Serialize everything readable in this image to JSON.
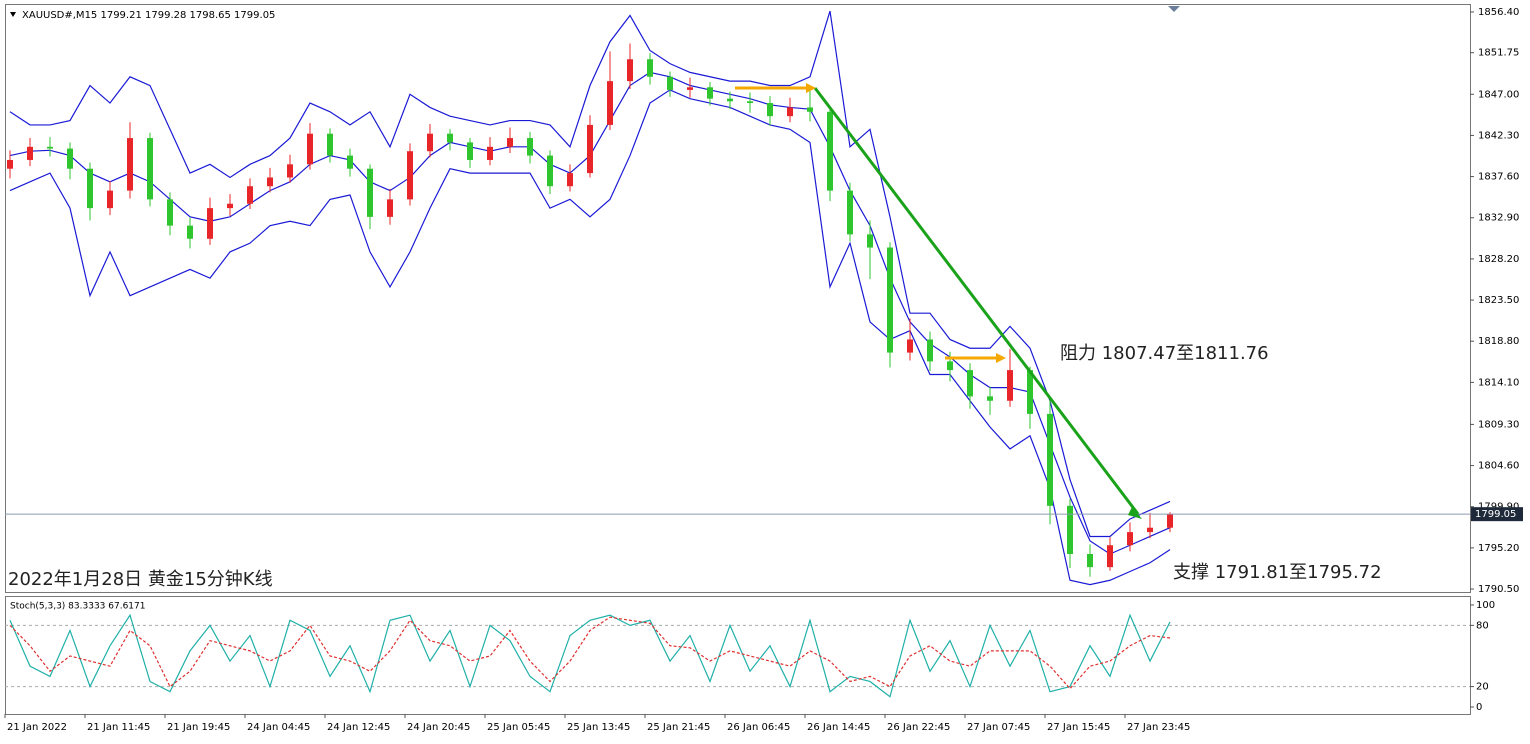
{
  "chart_data": {
    "type": "candlestick",
    "title": "XAUUSD#,M15  1799.21 1799.28 1798.65 1799.05",
    "annotations": [
      "阻力 1807.47至1811.76",
      "支撑 1791.81至1795.72",
      "2022年1月28日 黄金15分钟K线"
    ],
    "categories": [
      "21 Jan 2022",
      null,
      null,
      null,
      "21 Jan 11:45",
      null,
      null,
      null,
      "21 Jan 19:45",
      null,
      null,
      null,
      "24 Jan 04:45",
      null,
      null,
      null,
      "24 Jan 12:45",
      null,
      null,
      null,
      "24 Jan 20:45",
      null,
      null,
      null,
      "25 Jan 05:45",
      null,
      null,
      null,
      "25 Jan 13:45",
      null,
      null,
      null,
      "25 Jan 21:45",
      null,
      null,
      null,
      "26 Jan 06:45",
      null,
      null,
      null,
      "26 Jan 14:45",
      null,
      null,
      null,
      "26 Jan 22:45",
      null,
      null,
      null,
      "27 Jan 07:45",
      null,
      null,
      null,
      "27 Jan 15:45",
      null,
      null,
      null,
      "27 Jan 23:45",
      null,
      null
    ],
    "open": [
      1838.5,
      1839.5,
      1841.0,
      1840.8,
      1838.5,
      1834.0,
      1836.0,
      1842.0,
      1835.0,
      1832.0,
      1830.5,
      1834.0,
      1834.5,
      1836.5,
      1837.5,
      1839.0,
      1842.5,
      1840.0,
      1838.5,
      1833.0,
      1835.0,
      1840.5,
      1842.5,
      1841.5,
      1839.5,
      1841.0,
      1842.0,
      1840.0,
      1836.5,
      1838.0,
      1843.5,
      1848.5,
      1851.0,
      1849.0,
      1847.5,
      1847.8,
      1846.5,
      1846.2,
      1846.0,
      1844.5,
      1845.5,
      1845.0,
      1836.0,
      1831.0,
      1829.5,
      1817.5,
      1819.0,
      1816.5,
      1815.5,
      1812.5,
      1812.0,
      1815.5,
      1810.5,
      1800.0,
      1794.5,
      1793.0,
      1795.5,
      1797.0,
      1797.5
    ],
    "high": [
      1840.6,
      1842.0,
      1842.1,
      1841.5,
      1839.2,
      1837.1,
      1843.8,
      1842.6,
      1835.8,
      1832.9,
      1835.2,
      1835.6,
      1837.4,
      1838.6,
      1840.1,
      1843.7,
      1843.1,
      1840.8,
      1839.0,
      1836.2,
      1841.4,
      1843.6,
      1843.0,
      1842.0,
      1842.1,
      1843.2,
      1842.7,
      1840.6,
      1839.0,
      1844.6,
      1851.9,
      1852.8,
      1851.7,
      1849.6,
      1848.9,
      1848.4,
      1847.3,
      1847.2,
      1846.8,
      1846.6,
      1848.0,
      1845.6,
      1836.9,
      1832.6,
      1830.1,
      1821.4,
      1819.9,
      1817.6,
      1816.3,
      1813.6,
      1817.9,
      1815.9,
      1812.2,
      1800.8,
      1795.6,
      1796.4,
      1798.1,
      1799.2,
      1799.28
    ],
    "low": [
      1837.4,
      1838.8,
      1839.9,
      1837.3,
      1832.6,
      1833.2,
      1835.1,
      1834.2,
      1830.9,
      1829.4,
      1829.8,
      1833.1,
      1833.9,
      1835.8,
      1836.9,
      1838.4,
      1839.2,
      1837.6,
      1831.6,
      1832.1,
      1834.3,
      1839.8,
      1840.6,
      1838.6,
      1838.9,
      1840.3,
      1839.1,
      1835.6,
      1835.9,
      1837.5,
      1842.9,
      1847.6,
      1848.1,
      1846.7,
      1846.6,
      1845.7,
      1845.3,
      1844.9,
      1843.4,
      1843.8,
      1843.9,
      1834.8,
      1830.2,
      1825.9,
      1815.8,
      1816.6,
      1815.4,
      1814.2,
      1811.1,
      1810.4,
      1811.3,
      1808.8,
      1797.9,
      1792.9,
      1791.9,
      1792.6,
      1794.8,
      1796.3,
      1797.0
    ],
    "close": [
      1839.5,
      1841.0,
      1840.8,
      1838.5,
      1834.0,
      1836.0,
      1842.0,
      1835.0,
      1832.0,
      1830.5,
      1834.0,
      1834.5,
      1836.5,
      1837.5,
      1839.0,
      1842.5,
      1840.0,
      1838.5,
      1833.0,
      1835.0,
      1840.5,
      1842.5,
      1841.5,
      1839.5,
      1841.0,
      1842.0,
      1840.0,
      1836.5,
      1838.0,
      1843.5,
      1848.5,
      1851.0,
      1849.0,
      1847.5,
      1847.8,
      1846.5,
      1846.2,
      1846.0,
      1844.5,
      1845.5,
      1845.0,
      1836.0,
      1831.0,
      1829.5,
      1817.5,
      1819.0,
      1816.5,
      1815.5,
      1812.5,
      1812.0,
      1815.5,
      1810.5,
      1800.0,
      1794.5,
      1793.0,
      1795.5,
      1797.0,
      1797.5,
      1799.05
    ],
    "up_color": "#e8262a",
    "down_color": "#2ec52e",
    "series": [
      {
        "color": "#1a1ad6",
        "values": [
          1845,
          1843.5,
          1843.5,
          1844,
          1848,
          1846,
          1849,
          1848,
          1843,
          1838,
          1839,
          1837.5,
          1839,
          1840,
          1842,
          1846,
          1845,
          1843.5,
          1845,
          1841,
          1847,
          1845.5,
          1844.5,
          1844,
          1843.5,
          1844,
          1844,
          1843.5,
          1841,
          1848,
          1853,
          1856,
          1852,
          1850.5,
          1849.5,
          1849,
          1848.5,
          1848.5,
          1848,
          1848,
          1849,
          1856.5,
          1841,
          1843,
          1833,
          1822,
          1822,
          1819,
          1818,
          1818,
          1820.5,
          1818,
          1812,
          1803,
          1796.5,
          1796.5,
          1798.5,
          1799.5,
          1800.5
        ]
      },
      {
        "color": "#1a1ad6",
        "values": [
          1840,
          1840.5,
          1840.6,
          1840,
          1838,
          1837,
          1838,
          1837,
          1835,
          1833,
          1832.5,
          1833,
          1834.5,
          1836,
          1837,
          1839,
          1840,
          1839.5,
          1837,
          1836,
          1837.5,
          1840,
          1841.5,
          1841,
          1840.5,
          1841,
          1841,
          1839,
          1838,
          1840,
          1844,
          1848,
          1849.5,
          1849,
          1848,
          1847.5,
          1847,
          1846.5,
          1845.8,
          1845.5,
          1845.3,
          1841,
          1836,
          1832,
          1826,
          1821,
          1818.5,
          1817,
          1815,
          1813.5,
          1813.5,
          1813,
          1807,
          1801,
          1796,
          1794.5,
          1795.5,
          1796.5,
          1797.5
        ]
      },
      {
        "color": "#1a1ad6",
        "values": [
          1836,
          1837,
          1838,
          1834,
          1824,
          1829,
          1824,
          1825,
          1826,
          1827,
          1826,
          1829,
          1830,
          1832,
          1832.5,
          1832,
          1835,
          1835.5,
          1829,
          1825,
          1829,
          1834,
          1838.5,
          1838,
          1838,
          1838,
          1838,
          1834,
          1835,
          1833,
          1835,
          1840,
          1846,
          1847.5,
          1846.5,
          1846,
          1845.5,
          1844.5,
          1843.5,
          1843,
          1841.5,
          1825,
          1830,
          1821,
          1819,
          1820,
          1815,
          1815,
          1812,
          1809,
          1806.5,
          1808,
          1802,
          1791.5,
          1791,
          1791.5,
          1792.5,
          1793.5,
          1795
        ]
      }
    ],
    "last_price": 1799.05,
    "ylim": [
      1790.16,
      1857.31
    ],
    "yticks": [
      {
        "value": 1856.4,
        "label": "1856.40"
      },
      1851.75,
      {
        "value": 1847,
        "label": "1847.00"
      },
      {
        "value": 1842.3,
        "label": "1842.30"
      },
      {
        "value": 1837.6,
        "label": "1837.60"
      },
      {
        "value": 1832.9,
        "label": "1832.90"
      },
      {
        "value": 1828.2,
        "label": "1828.20"
      },
      {
        "value": 1823.5,
        "label": "1823.50"
      },
      {
        "value": 1818.8,
        "label": "1818.80"
      },
      {
        "value": 1814.1,
        "label": "1814.10"
      },
      {
        "value": 1809.3,
        "label": "1809.30"
      },
      {
        "value": 1804.6,
        "label": "1804.60"
      },
      {
        "value": 1799.9,
        "label": "1799.90"
      },
      {
        "value": 1795.2,
        "label": "1795.20"
      },
      {
        "value": 1790.5,
        "label": "1790.50"
      }
    ],
    "oscillator": {
      "title": "Stoch(5,3,3) 83.3333 67.6171",
      "series": [
        {
          "color": "#1fb0a8",
          "values": [
            85,
            40,
            30,
            75,
            20,
            60,
            90,
            25,
            15,
            55,
            80,
            45,
            70,
            20,
            85,
            75,
            30,
            60,
            15,
            85,
            90,
            45,
            75,
            20,
            80,
            65,
            30,
            15,
            70,
            85,
            90,
            80,
            85,
            45,
            70,
            25,
            80,
            35,
            60,
            20,
            85,
            15,
            30,
            25,
            10,
            85,
            35,
            65,
            20,
            80,
            40,
            75,
            15,
            20,
            60,
            30,
            90,
            45,
            83.3333
          ]
        },
        {
          "color": "#e03030",
          "values": [
            80,
            60,
            35,
            50,
            45,
            40,
            75,
            60,
            20,
            35,
            65,
            60,
            55,
            45,
            55,
            80,
            50,
            45,
            35,
            55,
            85,
            65,
            60,
            45,
            50,
            75,
            45,
            25,
            45,
            75,
            88,
            85,
            82,
            60,
            58,
            45,
            55,
            50,
            45,
            40,
            55,
            45,
            25,
            30,
            20,
            50,
            60,
            45,
            40,
            55,
            55,
            55,
            40,
            18,
            40,
            45,
            60,
            70,
            67.6171
          ]
        }
      ],
      "ylim": [
        -5.9,
        107.8
      ],
      "yticks": [
        100,
        80,
        20,
        0
      ],
      "levels": [
        80,
        20
      ]
    }
  }
}
